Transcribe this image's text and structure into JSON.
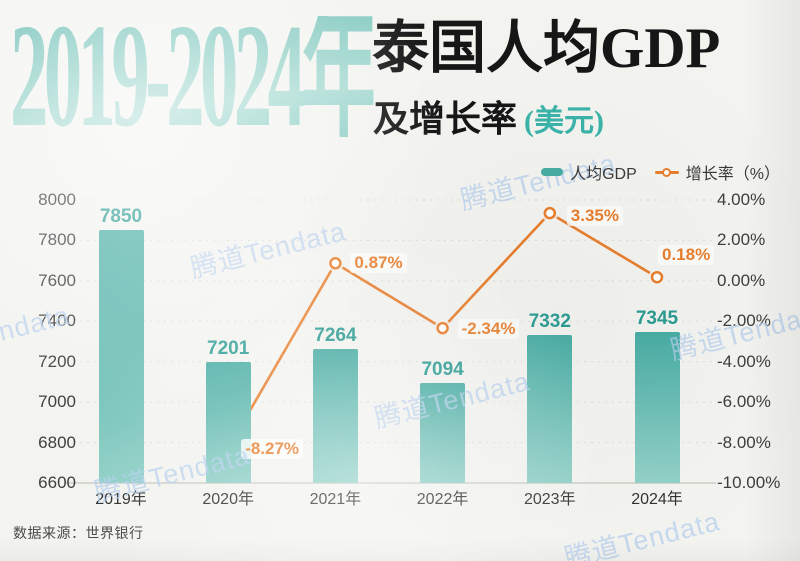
{
  "header": {
    "title_years": "2019-2024年",
    "title_main": "泰国人均GDP",
    "title_sub": "及增长率",
    "title_unit": "(美元)"
  },
  "legend": {
    "gdp_label": "人均GDP",
    "growth_label": "增长率（%）"
  },
  "watermark": {
    "text": "腾道Tendata"
  },
  "footer": {
    "source": "数据来源：世界银行"
  },
  "chart_data": {
    "type": "bar+line combo",
    "title": "2019-2024年泰国人均GDP及增长率（美元）",
    "categories": [
      "2019年",
      "2020年",
      "2021年",
      "2022年",
      "2023年",
      "2024年"
    ],
    "series": [
      {
        "name": "人均GDP",
        "type": "bar",
        "axis": "left",
        "values": [
          7850,
          7201,
          7264,
          7094,
          7332,
          7345
        ],
        "labels": [
          "7850",
          "7201",
          "7264",
          "7094",
          "7332",
          "7345"
        ]
      },
      {
        "name": "增长率 (%)",
        "type": "line",
        "axis": "right",
        "start_category_index": 1,
        "values": [
          -8.27,
          0.87,
          -2.34,
          3.35,
          0.18
        ],
        "labels": [
          "-8.27%",
          "0.87%",
          "-2.34%",
          "3.35%",
          "0.18%"
        ]
      }
    ],
    "left_axis": {
      "min": 6600,
      "max": 8000,
      "ticks": [
        "8000",
        "7800",
        "7600",
        "7400",
        "7200",
        "7000",
        "6800",
        "6600"
      ]
    },
    "right_axis": {
      "min": -10,
      "max": 4,
      "ticks": [
        "4.00%",
        "2.00%",
        "0.00%",
        "-2.00%",
        "-4.00%",
        "-6.00%",
        "-8.00%",
        "-10.00%"
      ]
    },
    "grid": "horizontal dashed lines, solid baseline",
    "legend_position": "top-right",
    "colors": {
      "bar_top": "#48ada4",
      "bar_bottom": "#93d1c8",
      "bar_label": "#2b9c93",
      "line": "#e87f2e",
      "axis_text": "#3e3e3e",
      "grid": "#dcdcd6",
      "baseline": "#c6c6c0",
      "title_accent": "#3bb3a9",
      "watermark": "#b5cfee"
    }
  }
}
